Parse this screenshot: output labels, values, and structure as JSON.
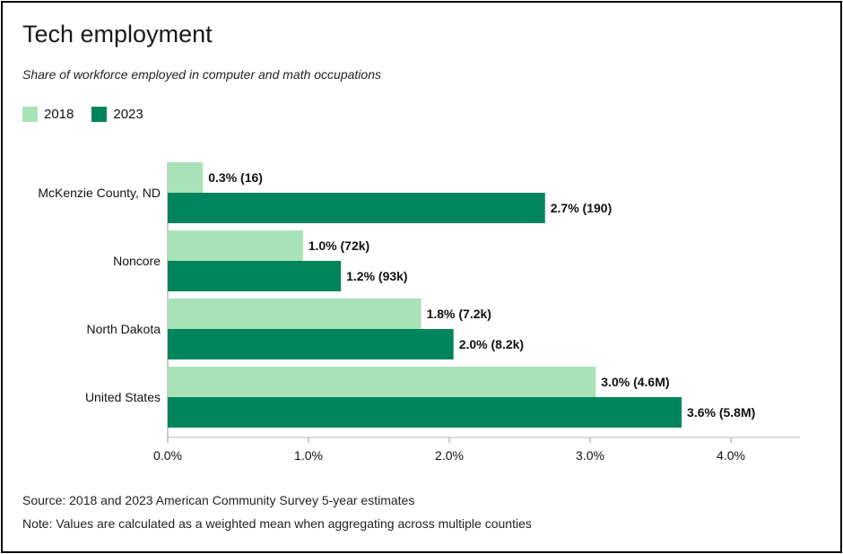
{
  "title": "Tech employment",
  "subtitle": "Share of workforce employed in computer and math occupations",
  "legend": [
    {
      "label": "2018",
      "color": "#a8e2b8"
    },
    {
      "label": "2023",
      "color": "#00845c"
    }
  ],
  "footer": {
    "source": "Source: 2018 and 2023 American Community Survey 5-year estimates",
    "note": "Note: Values are calculated as a weighted mean when aggregating across multiple counties"
  },
  "chart_data": {
    "type": "bar",
    "orientation": "horizontal",
    "categories": [
      "McKenzie County, ND",
      "Noncore",
      "North Dakota",
      "United States"
    ],
    "series": [
      {
        "name": "2018",
        "color": "#a8e2b8",
        "values": [
          0.25,
          0.96,
          1.8,
          3.04
        ],
        "labels": [
          "0.3% (16)",
          "1.0% (72k)",
          "1.8% (7.2k)",
          "3.0% (4.6M)"
        ]
      },
      {
        "name": "2023",
        "color": "#00845c",
        "values": [
          2.68,
          1.23,
          2.03,
          3.65
        ],
        "labels": [
          "2.7% (190)",
          "1.2% (93k)",
          "2.0% (8.2k)",
          "3.6% (5.8M)"
        ]
      }
    ],
    "xlim": [
      0,
      4.5
    ],
    "xticks": [
      0,
      1,
      2,
      3,
      4
    ],
    "xtick_labels": [
      "0.0%",
      "1.0%",
      "2.0%",
      "3.0%",
      "4.0%"
    ],
    "grid": false,
    "legend_position": "top-left"
  }
}
